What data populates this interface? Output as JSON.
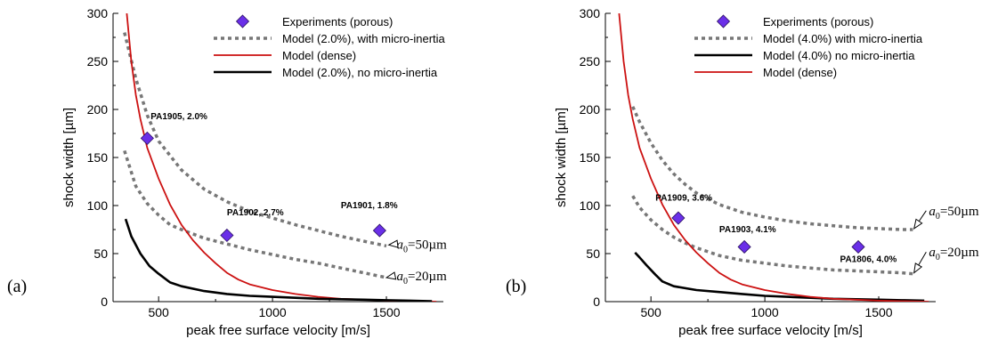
{
  "chart_data": [
    {
      "type": "line",
      "panel_label": "(a)",
      "xlabel": "peak free surface velocity [m/s]",
      "ylabel": "shock width [µm]",
      "xlim": [
        300,
        1750
      ],
      "ylim": [
        0,
        300
      ],
      "x_ticks": [
        500,
        1000,
        1500
      ],
      "y_ticks": [
        0,
        50,
        100,
        150,
        200,
        250,
        300
      ],
      "legend_position": "top-right",
      "series": [
        {
          "name": "Experiments (porous)",
          "kind": "marker",
          "color": "#6a2fe8",
          "points": [
            [
              450,
              170
            ],
            [
              800,
              69
            ],
            [
              1470,
              74
            ]
          ]
        },
        {
          "name": "Model (2.0%), with micro-inertia",
          "kind": "dashed",
          "color": "#777777",
          "points": [
            [
              350,
              280
            ],
            [
              400,
              232
            ],
            [
              450,
              194
            ],
            [
              500,
              167
            ],
            [
              600,
              137
            ],
            [
              700,
              117
            ],
            [
              800,
              104
            ],
            [
              900,
              94
            ],
            [
              1000,
              87
            ],
            [
              1100,
              80
            ],
            [
              1200,
              74
            ],
            [
              1300,
              68
            ],
            [
              1400,
              63
            ],
            [
              1500,
              58
            ]
          ]
        },
        {
          "name": "",
          "kind": "dashed",
          "color": "#777777",
          "points": [
            [
              350,
              157
            ],
            [
              400,
              120
            ],
            [
              450,
              102
            ],
            [
              500,
              90
            ],
            [
              550,
              80
            ],
            [
              600,
              75
            ],
            [
              700,
              66
            ],
            [
              800,
              60
            ],
            [
              900,
              54
            ],
            [
              1000,
              49
            ],
            [
              1100,
              44
            ],
            [
              1200,
              40
            ],
            [
              1300,
              35
            ],
            [
              1400,
              30
            ],
            [
              1500,
              25
            ]
          ]
        },
        {
          "name": "Model (dense)",
          "kind": "solid",
          "color": "#cc1111",
          "points": [
            [
              360,
              300
            ],
            [
              380,
              250
            ],
            [
              400,
              215
            ],
            [
              420,
              190
            ],
            [
              450,
              160
            ],
            [
              500,
              128
            ],
            [
              550,
              101
            ],
            [
              600,
              80
            ],
            [
              650,
              64
            ],
            [
              700,
              51
            ],
            [
              750,
              40
            ],
            [
              800,
              30
            ],
            [
              850,
              23
            ],
            [
              900,
              18
            ],
            [
              1000,
              12
            ],
            [
              1100,
              8
            ],
            [
              1200,
              5
            ],
            [
              1300,
              3
            ],
            [
              1400,
              2
            ],
            [
              1500,
              1
            ],
            [
              1600,
              0.5
            ],
            [
              1720,
              0
            ]
          ]
        },
        {
          "name": "Model (2.0%), no micro-inertia",
          "kind": "solid",
          "color": "#000000",
          "points": [
            [
              355,
              86
            ],
            [
              380,
              68
            ],
            [
              420,
              50
            ],
            [
              460,
              37
            ],
            [
              500,
              29
            ],
            [
              550,
              20
            ],
            [
              600,
              16
            ],
            [
              700,
              11
            ],
            [
              800,
              8
            ],
            [
              900,
              6
            ],
            [
              1000,
              5
            ],
            [
              1100,
              4
            ],
            [
              1200,
              3
            ],
            [
              1300,
              2.5
            ],
            [
              1400,
              2
            ],
            [
              1500,
              1.5
            ],
            [
              1600,
              1
            ],
            [
              1700,
              0.5
            ]
          ]
        }
      ],
      "annotations": [
        {
          "text": "PA1905, 2.0%",
          "x": 465,
          "y": 190
        },
        {
          "text": "PA1902, 2.7%",
          "x": 800,
          "y": 90
        },
        {
          "text": "PA1901, 1.8%",
          "x": 1300,
          "y": 97
        }
      ],
      "a0_labels": [
        {
          "sym": "a",
          "sub": "0",
          "rest": "=50µm",
          "x": 1545,
          "y": 55,
          "arrow_to": [
            1510,
            59
          ]
        },
        {
          "sym": "a",
          "sub": "0",
          "rest": "=20µm",
          "x": 1545,
          "y": 22,
          "arrow_to": [
            1500,
            25
          ]
        }
      ]
    },
    {
      "type": "line",
      "panel_label": "(b)",
      "xlabel": "peak free surface velocity [m/s]",
      "ylabel": "shock width [µm]",
      "xlim": [
        300,
        1750
      ],
      "ylim": [
        0,
        300
      ],
      "x_ticks": [
        500,
        1000,
        1500
      ],
      "y_ticks": [
        0,
        50,
        100,
        150,
        200,
        250,
        300
      ],
      "legend_position": "top-right",
      "series": [
        {
          "name": "Experiments (porous)",
          "kind": "marker",
          "color": "#6a2fe8",
          "points": [
            [
              620,
              87
            ],
            [
              910,
              57
            ],
            [
              1410,
              57
            ]
          ]
        },
        {
          "name": "Model (4.0%) with micro-inertia",
          "kind": "dashed",
          "color": "#777777",
          "points": [
            [
              420,
              203
            ],
            [
              450,
              187
            ],
            [
              500,
              165
            ],
            [
              550,
              147
            ],
            [
              600,
              133
            ],
            [
              650,
              122
            ],
            [
              700,
              113
            ],
            [
              800,
              101
            ],
            [
              900,
              93
            ],
            [
              1000,
              88
            ],
            [
              1100,
              84
            ],
            [
              1200,
              81
            ],
            [
              1300,
              79
            ],
            [
              1400,
              77
            ],
            [
              1500,
              76
            ],
            [
              1600,
              75
            ],
            [
              1650,
              75
            ]
          ]
        },
        {
          "name": "",
          "kind": "dashed",
          "color": "#777777",
          "points": [
            [
              420,
              110
            ],
            [
              450,
              98
            ],
            [
              500,
              85
            ],
            [
              550,
              75
            ],
            [
              600,
              67
            ],
            [
              650,
              61
            ],
            [
              700,
              56
            ],
            [
              800,
              48
            ],
            [
              900,
              43
            ],
            [
              1000,
              40
            ],
            [
              1100,
              37
            ],
            [
              1200,
              35
            ],
            [
              1300,
              33
            ],
            [
              1400,
              32
            ],
            [
              1500,
              31
            ],
            [
              1600,
              30
            ],
            [
              1650,
              29
            ]
          ]
        },
        {
          "name": "Model (4.0%) no micro-inertia",
          "kind": "solid",
          "color": "#000000",
          "points": [
            [
              430,
              51
            ],
            [
              450,
              46
            ],
            [
              480,
              38
            ],
            [
              520,
              28
            ],
            [
              550,
              21
            ],
            [
              600,
              16
            ],
            [
              700,
              12
            ],
            [
              800,
              10
            ],
            [
              900,
              8
            ],
            [
              1000,
              6
            ],
            [
              1100,
              5
            ],
            [
              1200,
              4
            ],
            [
              1300,
              3
            ],
            [
              1400,
              2.5
            ],
            [
              1500,
              2
            ],
            [
              1600,
              1.5
            ],
            [
              1700,
              1
            ]
          ]
        },
        {
          "name": "Model (dense)",
          "kind": "solid",
          "color": "#cc1111",
          "points": [
            [
              360,
              300
            ],
            [
              380,
              250
            ],
            [
              400,
              215
            ],
            [
              420,
              190
            ],
            [
              450,
              160
            ],
            [
              500,
              128
            ],
            [
              550,
              101
            ],
            [
              600,
              80
            ],
            [
              650,
              64
            ],
            [
              700,
              51
            ],
            [
              750,
              40
            ],
            [
              800,
              30
            ],
            [
              850,
              23
            ],
            [
              900,
              18
            ],
            [
              1000,
              12
            ],
            [
              1100,
              8
            ],
            [
              1200,
              5
            ],
            [
              1300,
              3
            ],
            [
              1400,
              2
            ],
            [
              1500,
              1
            ],
            [
              1600,
              0.5
            ],
            [
              1720,
              0
            ]
          ]
        }
      ],
      "annotations": [
        {
          "text": "PA1909, 3.6%",
          "x": 520,
          "y": 105
        },
        {
          "text": "PA1903, 4.1%",
          "x": 800,
          "y": 72
        },
        {
          "text": "PA1806, 4.0%",
          "x": 1330,
          "y": 41
        }
      ],
      "a0_labels": [
        {
          "sym": "a",
          "sub": "0",
          "rest": "=50µm",
          "x": 1720,
          "y": 90,
          "arrow_to": [
            1655,
            76
          ]
        },
        {
          "sym": "a",
          "sub": "0",
          "rest": "=20µm",
          "x": 1720,
          "y": 47,
          "arrow_to": [
            1655,
            30
          ]
        }
      ]
    }
  ]
}
